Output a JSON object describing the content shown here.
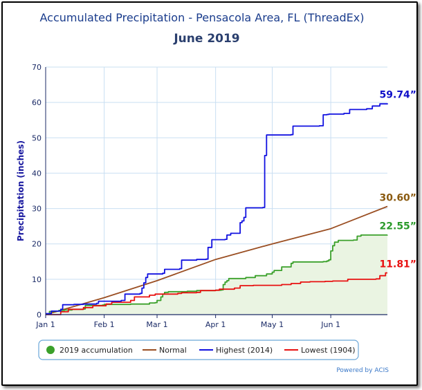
{
  "chart_data": {
    "type": "line",
    "title": "Accumulated Precipitation - Pensacola Area, FL (ThreadEx)",
    "subtitle": "June 2019",
    "ylabel": "Precipitation (inches)",
    "xlabel": "",
    "ylim": [
      0,
      70
    ],
    "yticks": [
      "0",
      "10",
      "20",
      "30",
      "40",
      "50",
      "60",
      "70"
    ],
    "xlim": [
      0,
      181
    ],
    "x_unit": "day of year",
    "xticks": [
      {
        "label": "Jan 1",
        "day": 0
      },
      {
        "label": "Feb 1",
        "day": 31
      },
      {
        "label": "Mar 1",
        "day": 59
      },
      {
        "label": "Apr 1",
        "day": 90
      },
      {
        "label": "May 1",
        "day": 120
      },
      {
        "label": "Jun 1",
        "day": 151
      }
    ],
    "grid": true,
    "legend_position": "bottom",
    "credit": "Powered by ACIS",
    "series": [
      {
        "name": "2019 accumulation",
        "color": "#3aa02a",
        "fill": "#eaf4e2",
        "end_label": "22.55”",
        "step": true,
        "points": [
          [
            0,
            0.2
          ],
          [
            2,
            0.9
          ],
          [
            5,
            1.0
          ],
          [
            7,
            1.2
          ],
          [
            10,
            1.3
          ],
          [
            14,
            1.5
          ],
          [
            20,
            1.6
          ],
          [
            21,
            2.6
          ],
          [
            30,
            2.7
          ],
          [
            31,
            2.9
          ],
          [
            45,
            3.0
          ],
          [
            55,
            3.3
          ],
          [
            58,
            3.4
          ],
          [
            59,
            4.0
          ],
          [
            61,
            5.0
          ],
          [
            62,
            5.8
          ],
          [
            63,
            6.3
          ],
          [
            65,
            6.5
          ],
          [
            75,
            6.6
          ],
          [
            80,
            6.8
          ],
          [
            90,
            6.9
          ],
          [
            93,
            7.0
          ],
          [
            94,
            8.5
          ],
          [
            95,
            9.2
          ],
          [
            96,
            9.6
          ],
          [
            97,
            10.2
          ],
          [
            106,
            10.5
          ],
          [
            111,
            11.0
          ],
          [
            117,
            11.5
          ],
          [
            120,
            12.0
          ],
          [
            121,
            12.5
          ],
          [
            125,
            13.5
          ],
          [
            130,
            14.5
          ],
          [
            131,
            14.9
          ],
          [
            147,
            15.0
          ],
          [
            149,
            15.2
          ],
          [
            150,
            15.5
          ],
          [
            151,
            18.0
          ],
          [
            152,
            19.5
          ],
          [
            153,
            20.5
          ],
          [
            155,
            21.0
          ],
          [
            163,
            21.1
          ],
          [
            165,
            22.2
          ],
          [
            167,
            22.5
          ],
          [
            181,
            22.55
          ]
        ]
      },
      {
        "name": "Normal",
        "color": "#9a4e22",
        "end_label": "30.60”",
        "step": false,
        "points": [
          [
            0,
            0
          ],
          [
            31,
            4.8
          ],
          [
            59,
            9.6
          ],
          [
            90,
            15.6
          ],
          [
            120,
            20.0
          ],
          [
            151,
            24.3
          ],
          [
            181,
            30.6
          ]
        ]
      },
      {
        "name": "Highest (2014)",
        "color": "#1010e0",
        "end_label": "59.74”",
        "step": true,
        "points": [
          [
            0,
            0.3
          ],
          [
            3,
            1.0
          ],
          [
            8,
            1.5
          ],
          [
            9,
            2.8
          ],
          [
            15,
            2.9
          ],
          [
            20,
            3.0
          ],
          [
            27,
            3.2
          ],
          [
            28,
            3.8
          ],
          [
            40,
            4.0
          ],
          [
            42,
            5.8
          ],
          [
            50,
            6.0
          ],
          [
            51,
            7.5
          ],
          [
            52,
            9.0
          ],
          [
            53,
            10.5
          ],
          [
            54,
            11.5
          ],
          [
            62,
            11.7
          ],
          [
            63,
            12.8
          ],
          [
            71,
            13.0
          ],
          [
            72,
            15.4
          ],
          [
            80,
            15.6
          ],
          [
            85,
            15.7
          ],
          [
            86,
            19.0
          ],
          [
            88,
            21.2
          ],
          [
            95,
            21.3
          ],
          [
            96,
            22.5
          ],
          [
            98,
            23.0
          ],
          [
            103,
            26.0
          ],
          [
            104,
            26.5
          ],
          [
            105,
            27.5
          ],
          [
            106,
            30.2
          ],
          [
            115,
            30.3
          ],
          [
            116,
            45.0
          ],
          [
            117,
            50.8
          ],
          [
            130,
            50.9
          ],
          [
            131,
            53.3
          ],
          [
            145,
            53.4
          ],
          [
            147,
            56.5
          ],
          [
            149,
            56.6
          ],
          [
            150,
            56.7
          ],
          [
            158,
            56.9
          ],
          [
            161,
            58.0
          ],
          [
            170,
            58.2
          ],
          [
            173,
            59.0
          ],
          [
            177,
            59.6
          ],
          [
            181,
            59.74
          ]
        ]
      },
      {
        "name": "Lowest (1904)",
        "color": "#e81010",
        "end_label": "11.81”",
        "step": true,
        "points": [
          [
            0,
            0.0
          ],
          [
            8,
            0.8
          ],
          [
            12,
            1.5
          ],
          [
            20,
            2.0
          ],
          [
            25,
            2.5
          ],
          [
            32,
            3.0
          ],
          [
            35,
            3.5
          ],
          [
            45,
            4.0
          ],
          [
            47,
            5.0
          ],
          [
            55,
            5.5
          ],
          [
            58,
            5.8
          ],
          [
            70,
            6.0
          ],
          [
            72,
            6.2
          ],
          [
            80,
            6.3
          ],
          [
            82,
            6.8
          ],
          [
            90,
            6.9
          ],
          [
            92,
            7.2
          ],
          [
            100,
            7.5
          ],
          [
            103,
            8.2
          ],
          [
            110,
            8.3
          ],
          [
            125,
            8.5
          ],
          [
            130,
            8.8
          ],
          [
            135,
            9.2
          ],
          [
            140,
            9.3
          ],
          [
            148,
            9.4
          ],
          [
            152,
            9.5
          ],
          [
            160,
            10.0
          ],
          [
            175,
            10.1
          ],
          [
            177,
            11.0
          ],
          [
            180,
            11.81
          ],
          [
            181,
            11.81
          ]
        ]
      }
    ]
  }
}
